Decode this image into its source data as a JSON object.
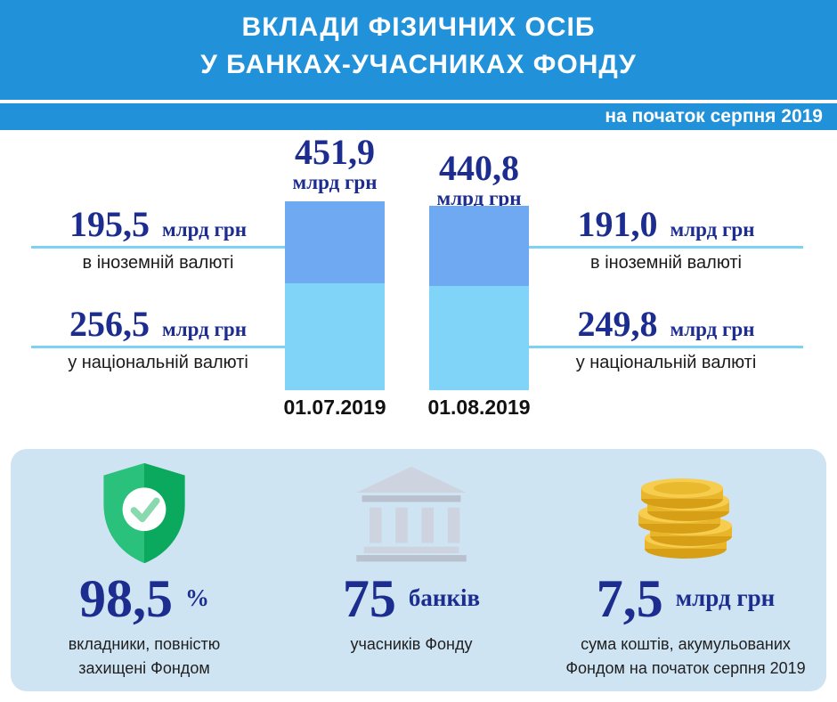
{
  "header": {
    "title_line1": "ВКЛАДИ ФІЗИЧНИХ ОСІБ",
    "title_line2": "У БАНКАХ-УЧАСНИКАХ ФОНДУ",
    "date_badge": "на початок серпня 2019"
  },
  "chart_data": {
    "type": "bar",
    "stacked": true,
    "unit": "млрд грн",
    "categories": [
      "01.07.2019",
      "01.08.2019"
    ],
    "series": [
      {
        "name": "в іноземній валюті",
        "values": [
          195.5,
          191.0
        ],
        "color": "#6FA9F2"
      },
      {
        "name": "у національній валюті",
        "values": [
          256.5,
          249.8
        ],
        "color": "#7FD4F8"
      }
    ],
    "totals": [
      451.9,
      440.8
    ],
    "legend_position": "none",
    "grid": false
  },
  "annotations": {
    "total_left": {
      "value": "451,9"
    },
    "total_right": {
      "value": "440,8"
    },
    "left_foreign": {
      "value": "195,5"
    },
    "left_national": {
      "value": "256,5"
    },
    "right_foreign": {
      "value": "191,0"
    },
    "right_national": {
      "value": "249,8"
    }
  },
  "stats": {
    "protected": {
      "icon": "shield-check-icon",
      "value": "98,5",
      "unit": "%",
      "caption": "вкладники, повністю\nзахищені Фондом"
    },
    "banks": {
      "icon": "bank-icon",
      "value": "75",
      "unit": "банків",
      "caption": "учасників Фонду"
    },
    "funds": {
      "icon": "coins-icon",
      "value": "7,5",
      "unit": "млрд грн",
      "caption": "сума коштів, акумульованих\nФондом на початок серпня 2019"
    }
  },
  "colors": {
    "header_blue": "#2191D9",
    "navy_text": "#1C2D8F",
    "bar_foreign": "#6FA9F2",
    "bar_national": "#7FD4F8",
    "connector_line": "#7DD1F7",
    "panel_blue": "#CFE4F3",
    "shield_green": "#0EB168",
    "bank_gray": "#CDD4DF",
    "coin_gold": "#F6CD4E"
  }
}
